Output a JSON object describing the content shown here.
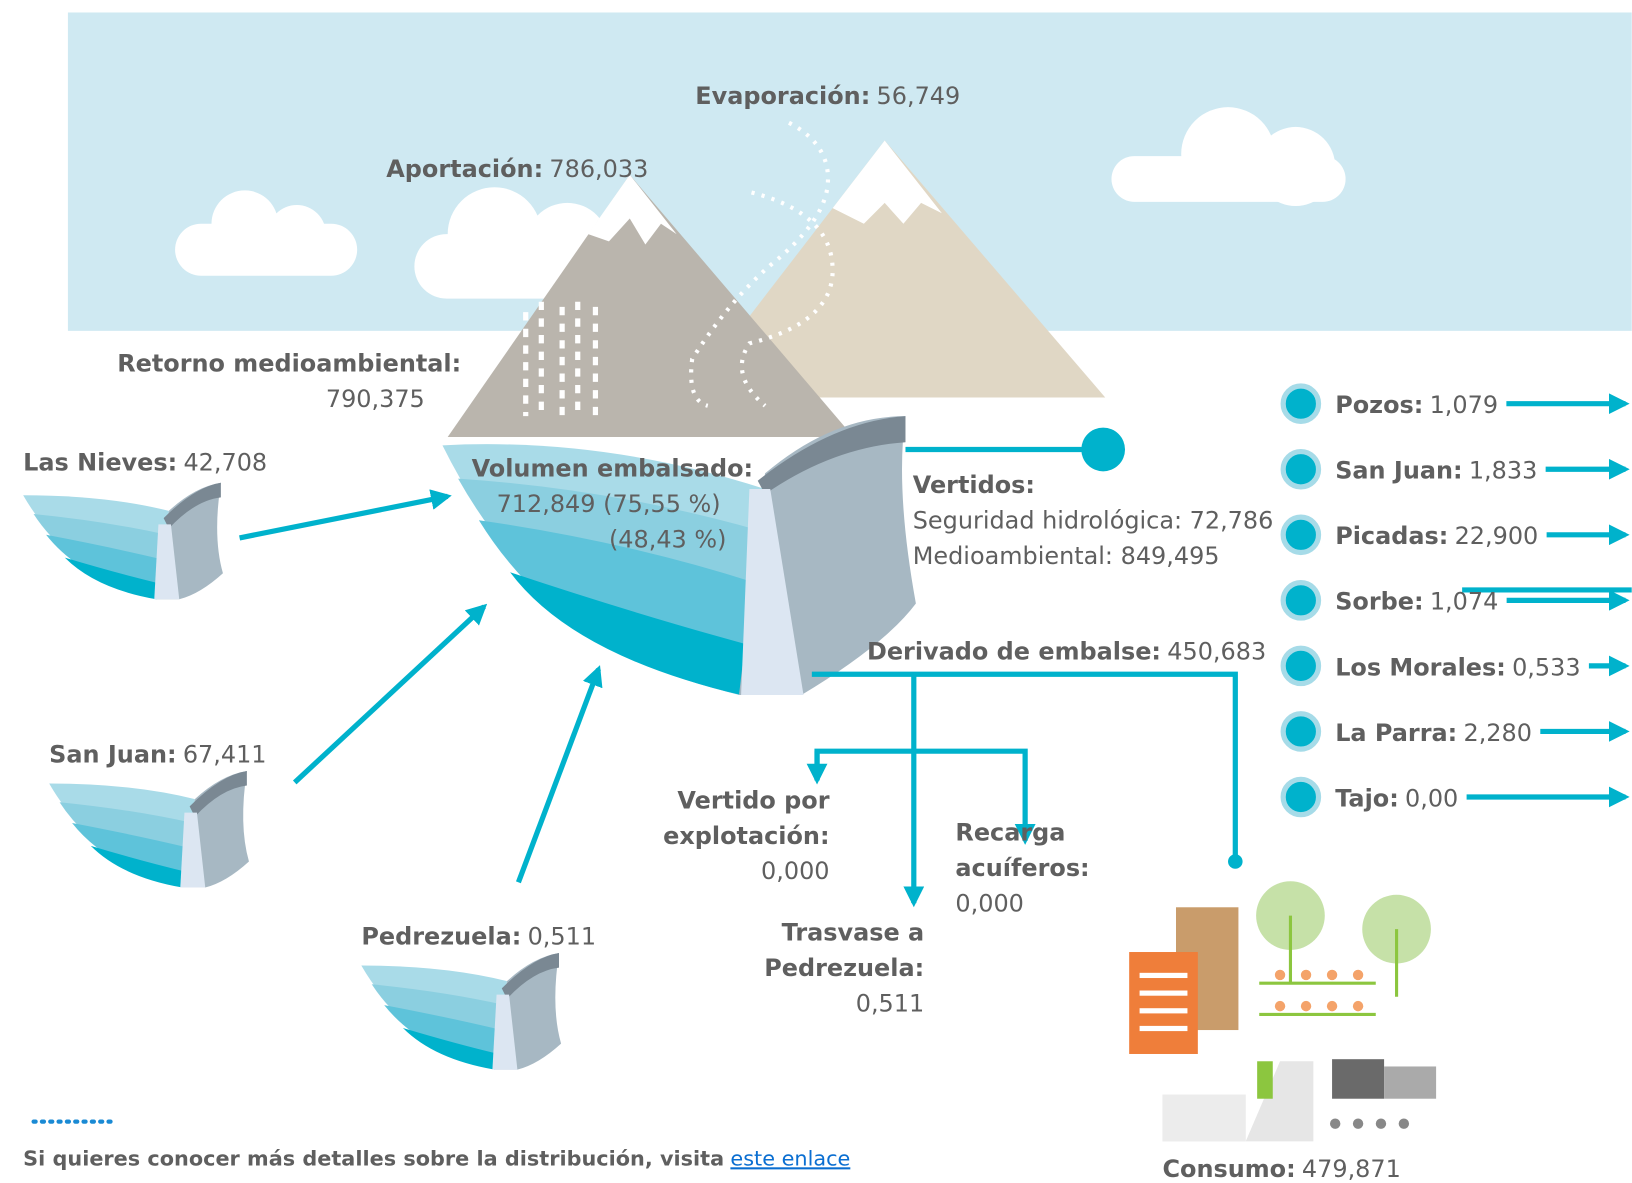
{
  "labels": {
    "evaporacion": {
      "label": [
        "Evaporación:"
      ],
      "value": [
        "56,749"
      ]
    },
    "aportacion": {
      "label": [
        "Aportación:"
      ],
      "value": [
        "786,033"
      ]
    },
    "retorno": {
      "label": [
        "Retorno medioambiental:"
      ],
      "value": [
        "790,375"
      ]
    },
    "las_nieves": {
      "label": [
        "Las Nieves:"
      ],
      "value": [
        "42,708"
      ]
    },
    "volumen": {
      "label": [
        "Volumen embalsado:"
      ],
      "value": [
        "712,849 (75,55 %)",
        "(48,43 %)"
      ]
    },
    "vertidos": {
      "label": [
        "Vertidos:"
      ],
      "value": [
        "Seguridad hidrológica: 72,786",
        "Medioambiental: 849,495"
      ]
    },
    "derivado": {
      "label": [
        "Derivado de embalse:"
      ],
      "value": [
        "450,683"
      ]
    },
    "san_juan": {
      "label": [
        "San Juan:"
      ],
      "value": [
        "67,411"
      ]
    },
    "pedrezuela": {
      "label": [
        "Pedrezuela:"
      ],
      "value": [
        "0,511"
      ]
    },
    "vertido_explotacion": {
      "label": [
        "Vertido por",
        "explotación:"
      ],
      "value": [
        "0,000"
      ]
    },
    "recarga": {
      "label": [
        "Recarga",
        "acuíferos:"
      ],
      "value": [
        "0,000"
      ]
    },
    "trasvase": {
      "label": [
        "Trasvase a",
        "Pedrezuela:"
      ],
      "value": [
        "0,511"
      ]
    },
    "consumo": {
      "label": [
        "Consumo:"
      ],
      "value": [
        "479,871"
      ]
    }
  },
  "outflows": [
    {
      "name": "Pozos:",
      "value": "1,079"
    },
    {
      "name": "San Juan:",
      "value": "1,833"
    },
    {
      "name": "Picadas:",
      "value": "22,900"
    },
    {
      "name": "Sorbe:",
      "value": "1,074"
    },
    {
      "name": "Los Morales:",
      "value": "0,533"
    },
    {
      "name": "La Parra:",
      "value": "2,280"
    },
    {
      "name": "Tajo:",
      "value": "0,00"
    }
  ],
  "footer": {
    "text": "Si quieres conocer más detalles sobre la distribución, visita",
    "link": "este enlace"
  }
}
